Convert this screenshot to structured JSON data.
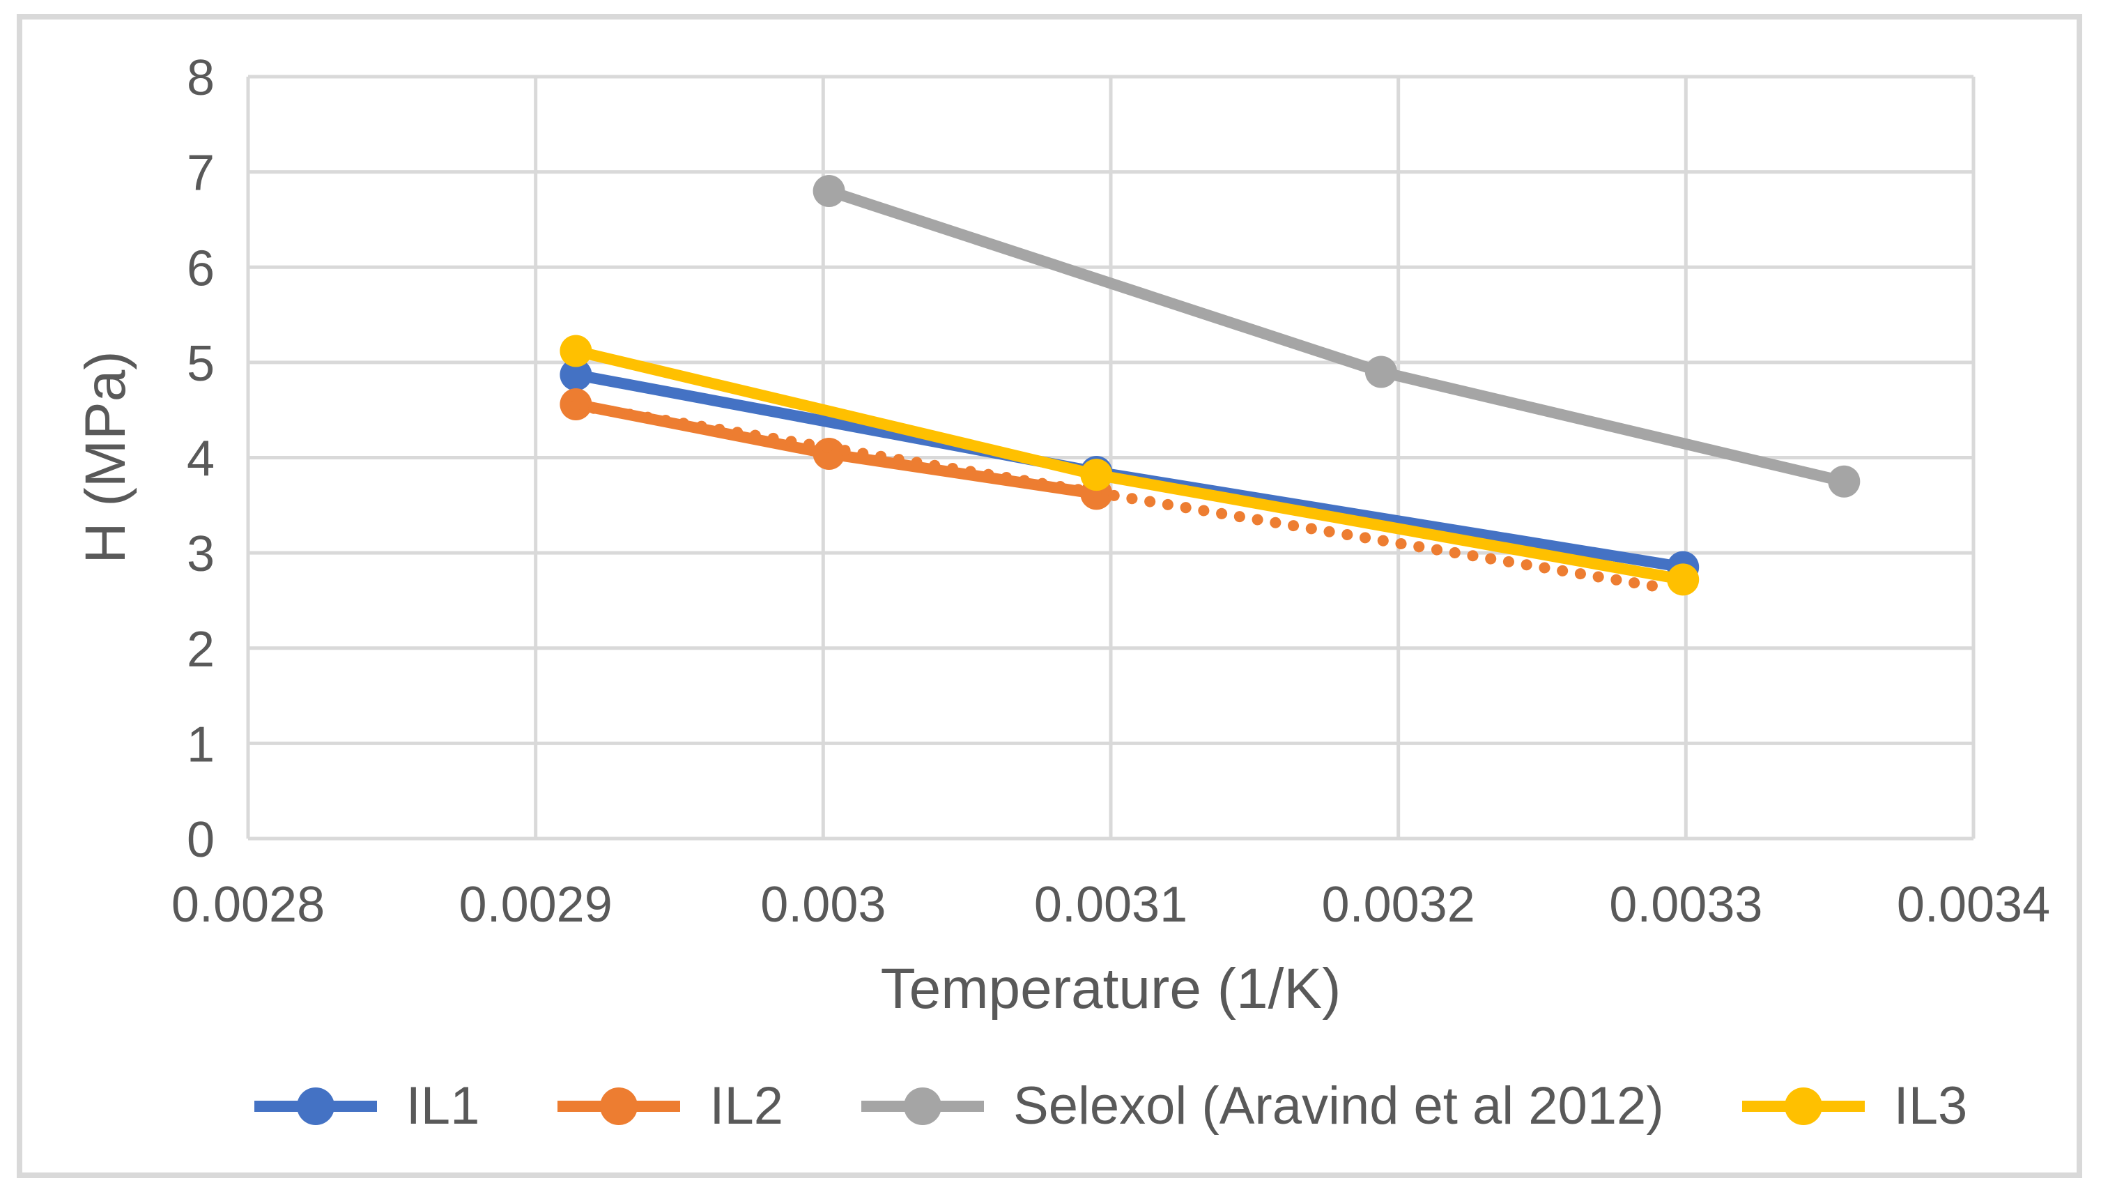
{
  "chart_data": {
    "type": "line",
    "title": "",
    "xlabel": "Temperature (1/K)",
    "ylabel": "H (MPa)",
    "xlim": [
      0.0028,
      0.0034
    ],
    "ylim": [
      0,
      8
    ],
    "x_ticks": [
      "0.0028",
      "0.0029",
      "0.003",
      "0.0031",
      "0.0032",
      "0.0033",
      "0.0034"
    ],
    "y_ticks": [
      "0",
      "1",
      "2",
      "3",
      "4",
      "5",
      "6",
      "7",
      "8"
    ],
    "grid": true,
    "legend_position": "bottom-center",
    "grid_color": "#D9D9D9",
    "text_color": "#595959",
    "border_color": "#D9D9D9",
    "series": [
      {
        "name": "IL1",
        "color": "#4472C4",
        "line_style": "solid",
        "markers": true,
        "in_legend": true,
        "points": [
          [
            0.002914,
            4.87
          ],
          [
            0.003095,
            3.85
          ],
          [
            0.003299,
            2.85
          ]
        ]
      },
      {
        "name": "IL2",
        "color": "#ED7D31",
        "line_style": "solid",
        "markers": true,
        "in_legend": true,
        "points": [
          [
            0.002914,
            4.56
          ],
          [
            0.003002,
            4.04
          ],
          [
            0.003095,
            3.62
          ]
        ]
      },
      {
        "name": "IL2 dotted trend",
        "color": "#ED7D31",
        "line_style": "dotted",
        "markers": false,
        "in_legend": false,
        "points": [
          [
            0.002914,
            4.55
          ],
          [
            0.003293,
            2.63
          ]
        ]
      },
      {
        "name": "Selexol (Aravind et al 2012)",
        "color": "#A5A5A5",
        "line_style": "solid",
        "markers": true,
        "in_legend": true,
        "points": [
          [
            0.003002,
            6.8
          ],
          [
            0.003194,
            4.9
          ],
          [
            0.003355,
            3.75
          ]
        ]
      },
      {
        "name": "IL3",
        "color": "#FFC000",
        "line_style": "solid",
        "markers": true,
        "in_legend": true,
        "points": [
          [
            0.002914,
            5.12
          ],
          [
            0.003095,
            3.82
          ],
          [
            0.003299,
            2.72
          ]
        ]
      }
    ]
  }
}
